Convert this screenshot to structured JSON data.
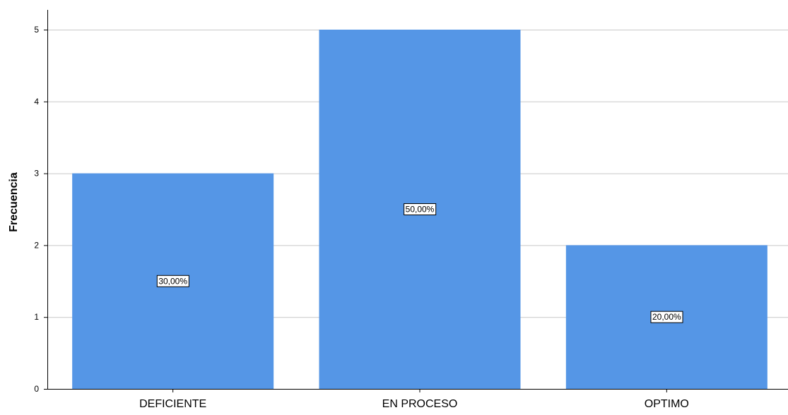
{
  "chart_data": {
    "type": "bar",
    "categories": [
      "DEFICIENTE",
      "EN PROCESO",
      "OPTIMO"
    ],
    "values": [
      3,
      5,
      2
    ],
    "data_labels": [
      "30,00%",
      "50,00%",
      "20,00%"
    ],
    "title": "",
    "xlabel": "",
    "ylabel": "Frecuencia",
    "ylim": [
      0,
      5
    ],
    "yticks": [
      0,
      1,
      2,
      3,
      4,
      5
    ],
    "grid": true,
    "bar_color": "#5596E6",
    "grid_color": "#C8C8C8",
    "axis_color": "#000000"
  }
}
